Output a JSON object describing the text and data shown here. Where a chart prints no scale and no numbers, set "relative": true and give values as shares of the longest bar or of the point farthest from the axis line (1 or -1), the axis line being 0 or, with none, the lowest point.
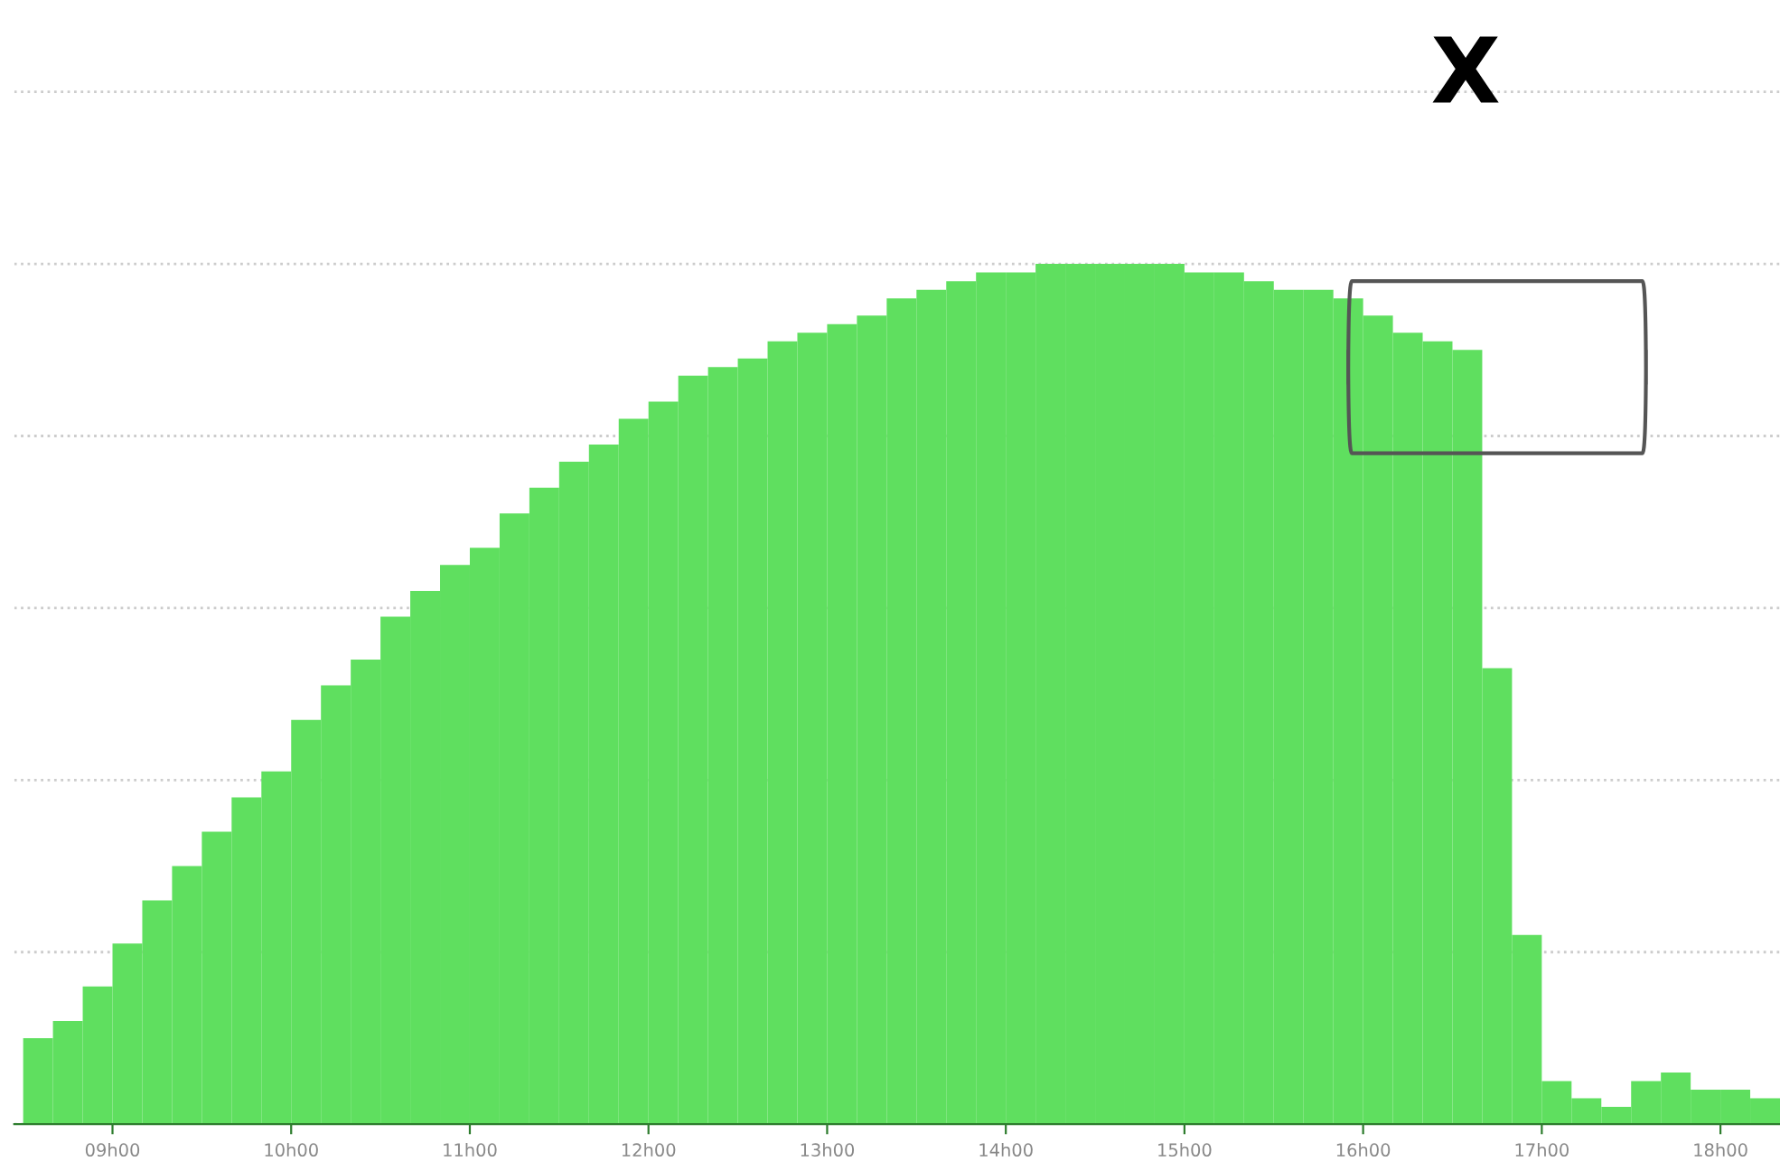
{
  "chart_data": {
    "type": "bar",
    "relative": true,
    "grid": "y",
    "color": "#5fdf5f",
    "categories": [
      null,
      null,
      null,
      "09h00",
      null,
      null,
      null,
      null,
      null,
      "10h00",
      null,
      null,
      null,
      null,
      null,
      "11h00",
      null,
      null,
      null,
      null,
      null,
      "12h00",
      null,
      null,
      null,
      null,
      null,
      "13h00",
      null,
      null,
      null,
      null,
      null,
      "14h00",
      null,
      null,
      null,
      null,
      null,
      "15h00",
      null,
      null,
      null,
      null,
      null,
      "16h00",
      null,
      null,
      null,
      null,
      null,
      "17h00",
      null,
      null,
      null,
      null,
      null,
      "18h00",
      null
    ],
    "values": [
      0.1,
      0.12,
      0.16,
      0.21,
      0.26,
      0.3,
      0.34,
      0.38,
      0.41,
      0.47,
      0.51,
      0.54,
      0.59,
      0.62,
      0.65,
      0.67,
      0.71,
      0.74,
      0.77,
      0.79,
      0.82,
      0.84,
      0.87,
      0.88,
      0.89,
      0.91,
      0.92,
      0.93,
      0.94,
      0.96,
      0.97,
      0.98,
      0.99,
      0.99,
      1.0,
      1.0,
      1.0,
      1.0,
      1.0,
      0.99,
      0.99,
      0.98,
      0.97,
      0.97,
      0.96,
      0.94,
      0.92,
      0.91,
      0.9,
      0.53,
      0.22,
      0.05,
      0.03,
      0.02,
      0.05,
      0.06,
      0.04,
      0.04,
      0.03
    ],
    "annotations": [
      "X"
    ]
  }
}
